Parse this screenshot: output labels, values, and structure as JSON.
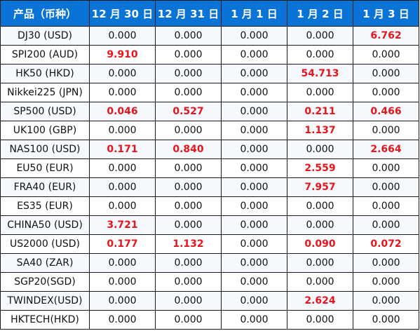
{
  "table": {
    "headers": [
      "产品（币种）",
      "12 月 30 日",
      "12 月 31 日",
      "1 月 1 日",
      "1 月 2 日",
      "1 月 3 日"
    ],
    "highlight_color": "#e8141b",
    "header_bg": "#0a73d6",
    "rows": [
      {
        "product": "DJ30 (USD)",
        "values": [
          "0.000",
          "0.000",
          "0.000",
          "0.000",
          "6.762"
        ],
        "highlight": [
          false,
          false,
          false,
          false,
          true
        ]
      },
      {
        "product": "SPI200 (AUD)",
        "values": [
          "9.910",
          "0.000",
          "0.000",
          "0.000",
          "0.000"
        ],
        "highlight": [
          true,
          false,
          false,
          false,
          false
        ]
      },
      {
        "product": "HK50 (HKD)",
        "values": [
          "0.000",
          "0.000",
          "0.000",
          "54.713",
          "0.000"
        ],
        "highlight": [
          false,
          false,
          false,
          true,
          false
        ]
      },
      {
        "product": "Nikkei225 (JPN)",
        "values": [
          "0.000",
          "0.000",
          "0.000",
          "0.000",
          "0.000"
        ],
        "highlight": [
          false,
          false,
          false,
          false,
          false
        ]
      },
      {
        "product": "SP500 (USD)",
        "values": [
          "0.046",
          "0.527",
          "0.000",
          "0.211",
          "0.466"
        ],
        "highlight": [
          true,
          true,
          false,
          true,
          true
        ]
      },
      {
        "product": "UK100 (GBP)",
        "values": [
          "0.000",
          "0.000",
          "0.000",
          "1.137",
          "0.000"
        ],
        "highlight": [
          false,
          false,
          false,
          true,
          false
        ]
      },
      {
        "product": "NAS100 (USD)",
        "values": [
          "0.171",
          "0.840",
          "0.000",
          "0.000",
          "2.664"
        ],
        "highlight": [
          true,
          true,
          false,
          false,
          true
        ]
      },
      {
        "product": "EU50 (EUR)",
        "values": [
          "0.000",
          "0.000",
          "0.000",
          "2.559",
          "0.000"
        ],
        "highlight": [
          false,
          false,
          false,
          true,
          false
        ]
      },
      {
        "product": "FRA40 (EUR)",
        "values": [
          "0.000",
          "0.000",
          "0.000",
          "7.957",
          "0.000"
        ],
        "highlight": [
          false,
          false,
          false,
          true,
          false
        ]
      },
      {
        "product": "ES35 (EUR)",
        "values": [
          "0.000",
          "0.000",
          "0.000",
          "0.000",
          "0.000"
        ],
        "highlight": [
          false,
          false,
          false,
          false,
          false
        ]
      },
      {
        "product": "CHINA50 (USD)",
        "values": [
          "3.721",
          "0.000",
          "0.000",
          "0.000",
          "0.000"
        ],
        "highlight": [
          true,
          false,
          false,
          false,
          false
        ]
      },
      {
        "product": "US2000 (USD)",
        "values": [
          "0.177",
          "1.132",
          "0.000",
          "0.090",
          "0.072"
        ],
        "highlight": [
          true,
          true,
          false,
          true,
          true
        ]
      },
      {
        "product": "SA40 (ZAR)",
        "values": [
          "0.000",
          "0.000",
          "0.000",
          "0.000",
          "0.000"
        ],
        "highlight": [
          false,
          false,
          false,
          false,
          false
        ]
      },
      {
        "product": "SGP20(SGD)",
        "values": [
          "0.000",
          "0.000",
          "0.000",
          "0.000",
          "0.000"
        ],
        "highlight": [
          false,
          false,
          false,
          false,
          false
        ]
      },
      {
        "product": "TWINDEX(USD)",
        "values": [
          "0.000",
          "0.000",
          "0.000",
          "2.624",
          "0.000"
        ],
        "highlight": [
          false,
          false,
          false,
          true,
          false
        ]
      },
      {
        "product": "HKTECH(HKD)",
        "values": [
          "0.000",
          "0.000",
          "0.000",
          "0.000",
          "0.000"
        ],
        "highlight": [
          false,
          false,
          false,
          false,
          false
        ]
      }
    ]
  }
}
